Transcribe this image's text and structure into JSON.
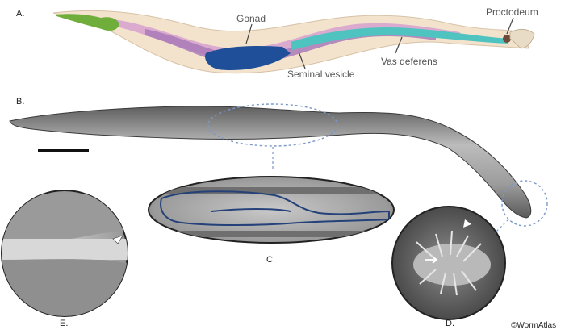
{
  "panels": {
    "a": "A.",
    "b": "B.",
    "c": "C.",
    "d": "D.",
    "e": "E."
  },
  "labels": {
    "gonad": "Gonad",
    "proctodeum": "Proctodeum",
    "seminal_vesicle": "Seminal vesicle",
    "vas_deferens": "Vas deferens"
  },
  "credit": "©WormAtlas",
  "colors": {
    "pharynx": "#6fae3a",
    "gut": "#d9a7cf",
    "gonad_teal": "#4fc3c0",
    "gonad_purple": "#a97ab8",
    "gonad_blue": "#1f4f98",
    "cuticle": "#f3e2cc",
    "proctodeum": "#6e4a3a",
    "dashed": "#7a98c8"
  },
  "icons": {
    "arrowhead": "arrowhead-icon",
    "arrow": "arrow-icon"
  }
}
